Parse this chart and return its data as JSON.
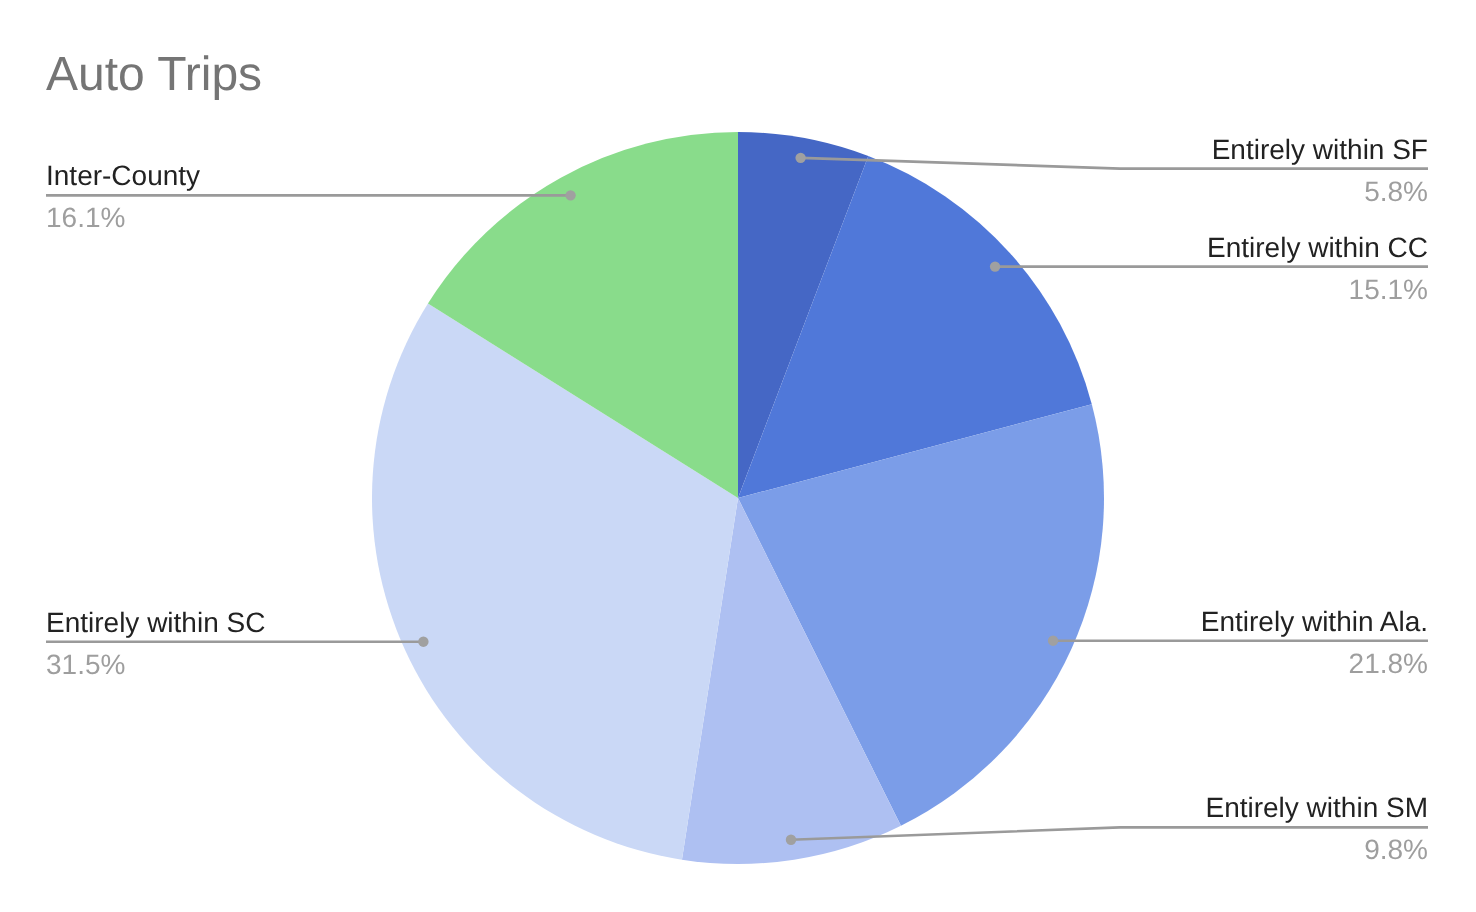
{
  "chart_data": {
    "type": "pie",
    "title": "Auto Trips",
    "categories": [
      "Entirely within SF",
      "Entirely within CC",
      "Entirely within Ala.",
      "Entirely within SM",
      "Entirely within SC",
      "Inter-County"
    ],
    "values": [
      5.8,
      15.1,
      21.8,
      9.8,
      31.5,
      16.1
    ],
    "colors": [
      "#4567c5",
      "#5078d9",
      "#7b9de8",
      "#aec0f2",
      "#cad8f6",
      "#89dc8b"
    ],
    "value_labels": [
      "5.8%",
      "15.1%",
      "21.8%",
      "9.8%",
      "31.5%",
      "16.1%"
    ]
  }
}
